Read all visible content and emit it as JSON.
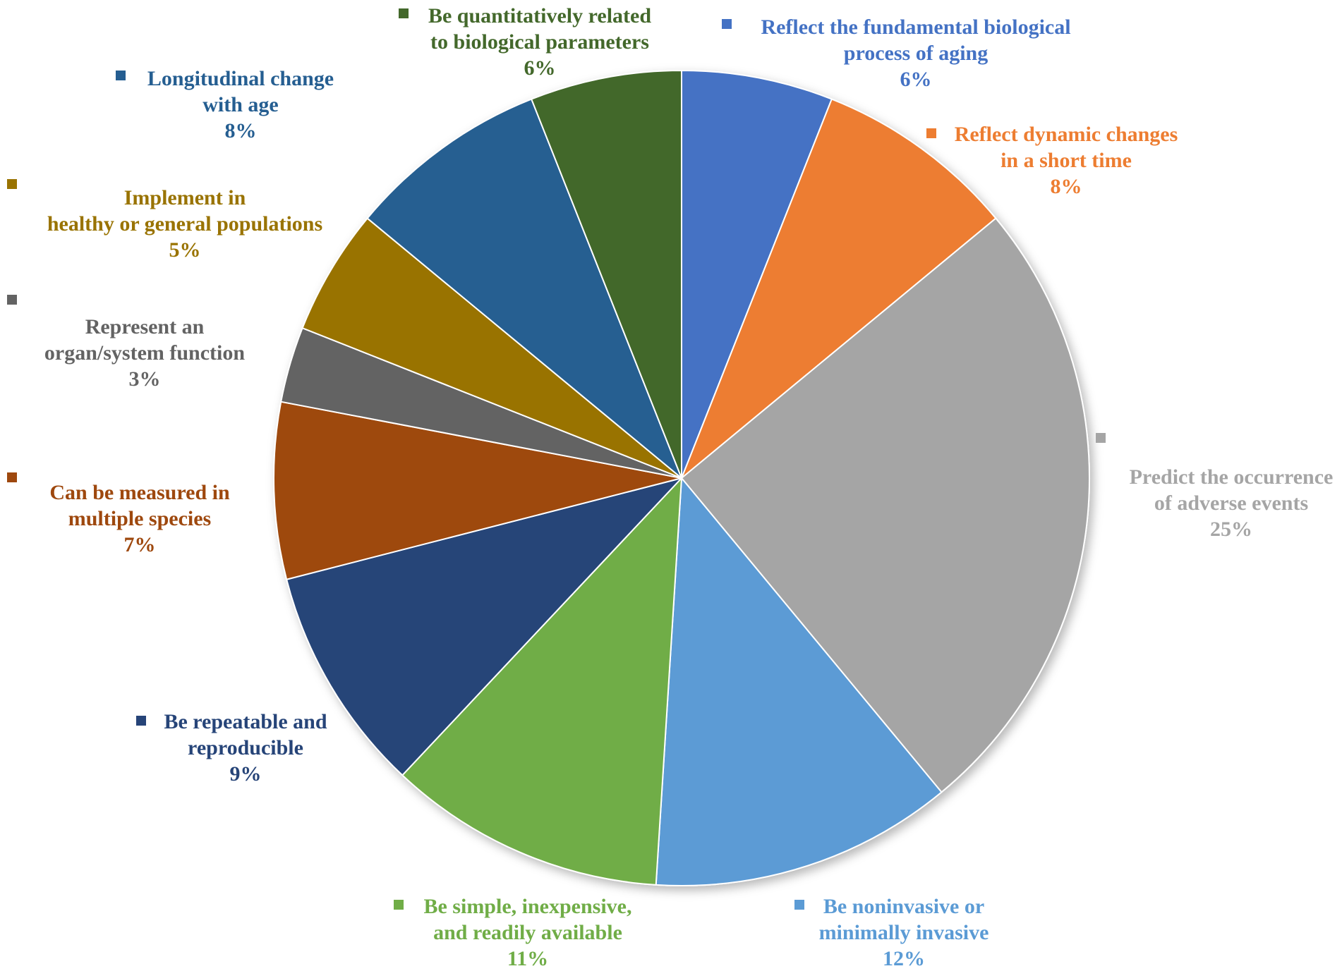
{
  "chart_data": {
    "type": "pie",
    "title": "",
    "legend_placement": "data-labels-around-pie",
    "slices": [
      {
        "lines": [
          "Reflect the fundamental biological",
          "process of aging"
        ],
        "pct_label": "6%",
        "value": 6,
        "color": "#4472C4",
        "label_color": "#4472C4",
        "label_style": "bold"
      },
      {
        "lines": [
          "Reflect dynamic changes",
          "in a short time"
        ],
        "pct_label": "8%",
        "value": 8,
        "color": "#ED7D31",
        "label_color": "#ED7D31",
        "label_style": "bold"
      },
      {
        "lines": [
          "Predict the occurrence",
          "of adverse events"
        ],
        "pct_label": "25%",
        "value": 25,
        "color": "#A5A5A5",
        "label_color": "#A5A5A5",
        "label_style": "bold"
      },
      {
        "lines": [
          "Be noninvasive or",
          "minimally invasive"
        ],
        "pct_label": "12%",
        "value": 12,
        "color": "#5B9BD5",
        "label_color": "#5B9BD5",
        "label_style": "bold"
      },
      {
        "lines": [
          "Be simple, inexpensive,",
          "and readily available"
        ],
        "pct_label": "11%",
        "value": 11,
        "color": "#70AD47",
        "label_color": "#70AD47",
        "label_style": "bold"
      },
      {
        "lines": [
          "Be repeatable and",
          "reproducible"
        ],
        "pct_label": "9%",
        "value": 9,
        "color": "#264478",
        "label_color": "#264478",
        "label_style": "bold"
      },
      {
        "lines": [
          "Can be measured in",
          "multiple species"
        ],
        "pct_label": "7%",
        "value": 7,
        "color": "#9E480E",
        "label_color": "#9E480E",
        "label_style": "bold"
      },
      {
        "lines": [
          "Represent an",
          "organ/system function"
        ],
        "pct_label": "3%",
        "value": 3,
        "color": "#636363",
        "label_color": "#636363",
        "label_style": "bold"
      },
      {
        "lines": [
          "Implement in",
          "healthy or general populations"
        ],
        "pct_label": "5%",
        "value": 5,
        "color": "#997300",
        "label_color": "#997300",
        "label_style": "bold"
      },
      {
        "lines": [
          "Longitudinal change",
          "with age"
        ],
        "pct_label": "8%",
        "value": 8,
        "color": "#255E91",
        "label_color": "#255E91",
        "label_style": "bold"
      },
      {
        "lines": [
          "Be quantitatively related",
          "to biological parameters"
        ],
        "pct_label": "6%",
        "value": 6,
        "color": "#43682B",
        "label_color": "#43682B",
        "label_style": "bold"
      }
    ]
  }
}
